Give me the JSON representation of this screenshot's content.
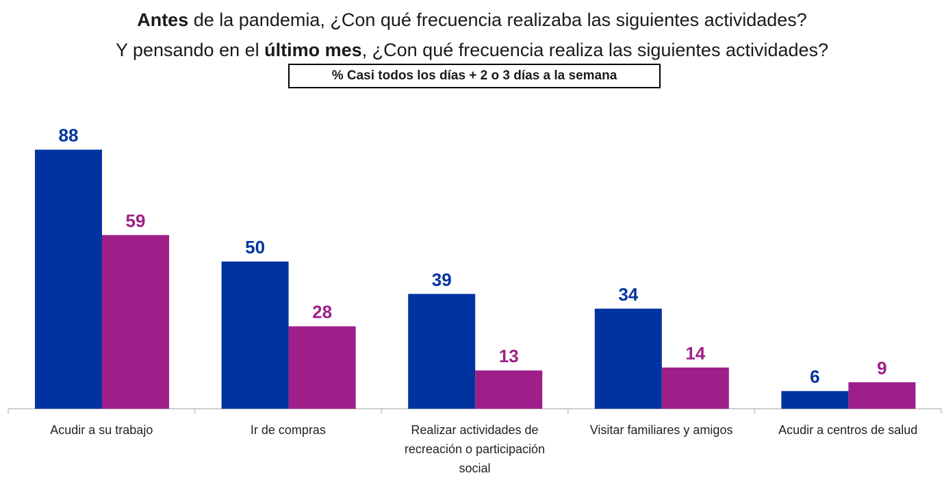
{
  "title": {
    "line1": {
      "bold": "Antes",
      "rest": " de la pandemia, ¿Con qué frecuencia realizaba las siguientes actividades?"
    },
    "line2": {
      "pre": "Y pensando en el ",
      "bold": "último mes",
      "post": ", ¿Con qué frecuencia realiza las siguientes actividades?"
    }
  },
  "subtitle": "% Casi todos los días + 2 o 3 días a la semana",
  "chart_data": {
    "type": "bar",
    "categories": [
      "Acudir a su trabajo",
      "Ir de compras",
      "Realizar actividades de recreación o participación social",
      "Visitar familiares y amigos",
      "Acudir a centros de salud"
    ],
    "series": [
      {
        "values": [
          88,
          50,
          39,
          34,
          6
        ],
        "color": "#0033a0"
      },
      {
        "values": [
          59,
          28,
          13,
          14,
          9
        ],
        "color": "#9e1f8a"
      }
    ],
    "ylim": [
      0,
      100
    ],
    "grid": false,
    "data_labels": true,
    "legend": "none"
  }
}
